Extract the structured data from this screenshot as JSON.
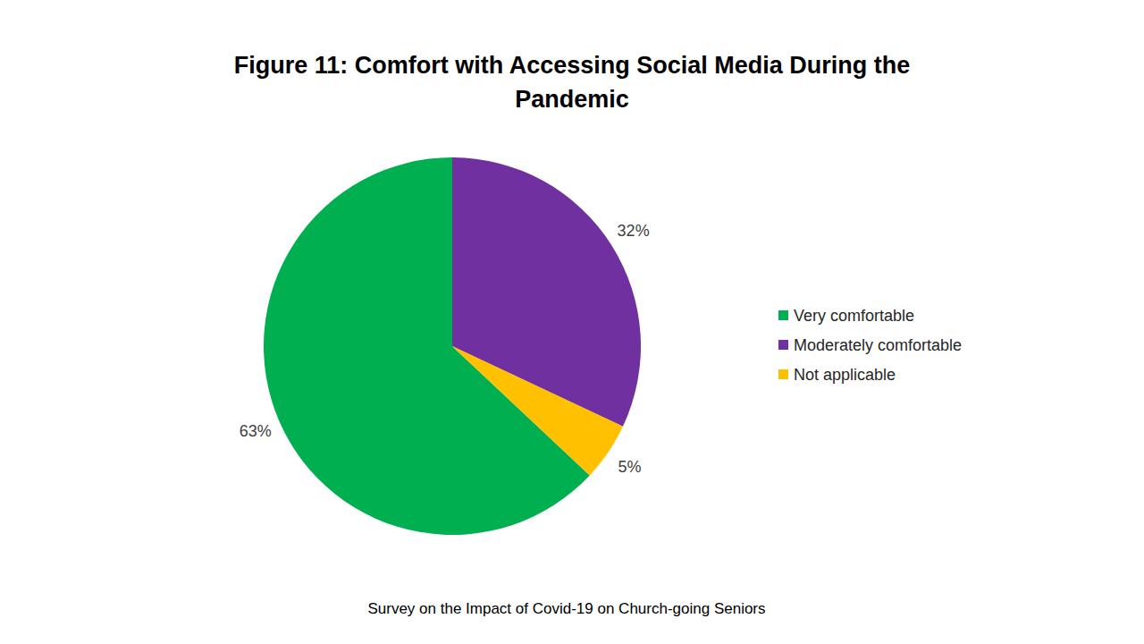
{
  "chart_data": {
    "type": "pie",
    "title": "Figure 11: Comfort with Accessing Social Media During the Pandemic",
    "caption": "Survey on the Impact of Covid-19 on Church-going Seniors",
    "categories": [
      "Very comfortable",
      "Moderately comfortable",
      "Not applicable"
    ],
    "values": [
      63,
      32,
      5
    ],
    "value_labels": [
      "63%",
      "32%",
      "5%"
    ],
    "colors": [
      "#00b050",
      "#7030a0",
      "#ffc000"
    ],
    "data_labels": true,
    "legend": "right"
  }
}
